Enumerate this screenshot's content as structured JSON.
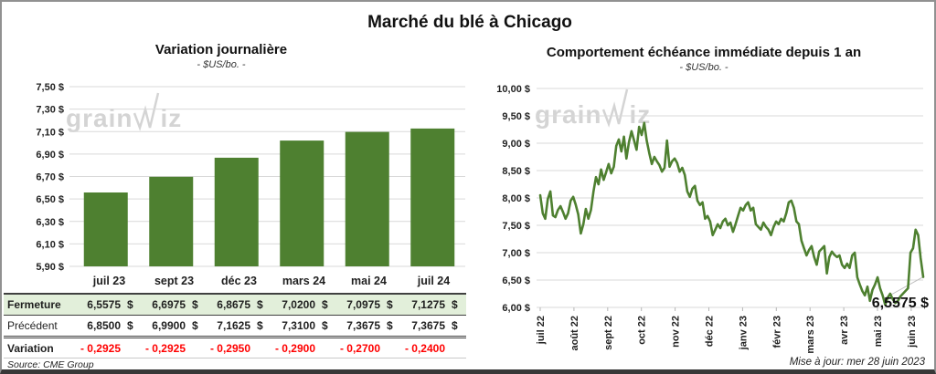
{
  "title": "Marché du blé à Chicago",
  "watermark": {
    "part1": "grain",
    "part2": "iz"
  },
  "colors": {
    "green": "#4e8030",
    "light_green_row": "#e2efda",
    "red": "#ff0000",
    "grid": "#d9d9d9",
    "watermark": "#d4d4d4",
    "dark_border": "#404040"
  },
  "chart_data": [
    {
      "type": "bar",
      "title": "Variation journalière",
      "subtitle": "- $US/bo. -",
      "categories": [
        "juil 23",
        "sept 23",
        "déc 23",
        "mars 24",
        "mai 24",
        "juil 24"
      ],
      "values": [
        6.5575,
        6.6975,
        6.8675,
        7.02,
        7.0975,
        7.1275
      ],
      "ylabel_suffix": " $",
      "ylim": [
        5.9,
        7.5
      ],
      "ytick_step": 0.2,
      "grid": true,
      "legend": "none",
      "bar_color": "#4e8030"
    },
    {
      "type": "line",
      "title": "Comportement échéance immédiate depuis 1 an",
      "subtitle": "- $US/bo. -",
      "x_ticks": [
        "juil 22",
        "août 22",
        "sept 22",
        "oct 22",
        "nov 22",
        "déc 22",
        "janv 23",
        "févr 23",
        "mars 23",
        "avr 23",
        "mai 23",
        "juin 23"
      ],
      "values": [
        8.05,
        7.72,
        7.62,
        7.98,
        8.12,
        7.68,
        7.65,
        7.78,
        7.85,
        7.74,
        7.62,
        7.72,
        7.95,
        8.02,
        7.88,
        7.7,
        7.35,
        7.52,
        7.8,
        7.62,
        7.78,
        8.12,
        8.38,
        8.25,
        8.52,
        8.33,
        8.47,
        8.62,
        8.45,
        8.57,
        8.95,
        9.07,
        8.85,
        9.12,
        8.72,
        9.02,
        9.22,
        9.05,
        8.88,
        9.3,
        9.15,
        9.37,
        9.05,
        8.82,
        8.62,
        8.75,
        8.67,
        8.6,
        8.48,
        8.55,
        9.05,
        8.57,
        8.67,
        8.72,
        8.64,
        8.48,
        8.55,
        8.42,
        8.12,
        8.02,
        8.17,
        8.22,
        7.95,
        7.87,
        7.92,
        7.62,
        7.67,
        7.57,
        7.32,
        7.42,
        7.52,
        7.45,
        7.57,
        7.62,
        7.5,
        7.55,
        7.38,
        7.52,
        7.67,
        7.82,
        7.77,
        7.87,
        7.92,
        7.77,
        7.82,
        7.52,
        7.47,
        7.42,
        7.55,
        7.47,
        7.42,
        7.32,
        7.47,
        7.57,
        7.52,
        7.62,
        7.57,
        7.72,
        7.92,
        7.95,
        7.82,
        7.57,
        7.52,
        7.22,
        7.08,
        6.95,
        7.05,
        7.12,
        6.92,
        6.78,
        7.02,
        7.07,
        7.12,
        6.62,
        6.92,
        7.02,
        6.96,
        6.92,
        6.95,
        6.78,
        6.72,
        6.8,
        6.72,
        6.95,
        7.0,
        6.55,
        6.42,
        6.3,
        6.22,
        6.38,
        6.12,
        6.32,
        6.42,
        6.55,
        6.35,
        6.22,
        6.05,
        6.18,
        6.25,
        6.15,
        6.08,
        6.12,
        6.2,
        6.25,
        6.3,
        6.35,
        7.0,
        7.08,
        7.42,
        7.32,
        6.9,
        6.5575
      ],
      "ylabel_suffix": " $",
      "ylim": [
        6.0,
        10.0
      ],
      "ytick_step": 0.5,
      "grid": true,
      "legend": "none",
      "line_color": "#4e8030",
      "last_value_label": "6,5575 $",
      "updated": "Mise à jour: mer 28 juin 2023"
    }
  ],
  "table": {
    "rows": [
      {
        "label": "Fermeture",
        "style": "close",
        "currency": "$",
        "values": [
          "6,5575",
          "6,6975",
          "6,8675",
          "7,0200",
          "7,0975",
          "7,1275"
        ]
      },
      {
        "label": "Précédent",
        "style": "previous",
        "currency": "$",
        "values": [
          "6,8500",
          "6,9900",
          "7,1625",
          "7,3100",
          "7,3675",
          "7,3675"
        ]
      },
      {
        "label": "Variation",
        "style": "variation",
        "currency": "",
        "values": [
          "- 0,2925",
          "- 0,2925",
          "- 0,2950",
          "- 0,2900",
          "- 0,2700",
          "- 0,2400"
        ]
      }
    ],
    "source": "Source: CME Group"
  }
}
